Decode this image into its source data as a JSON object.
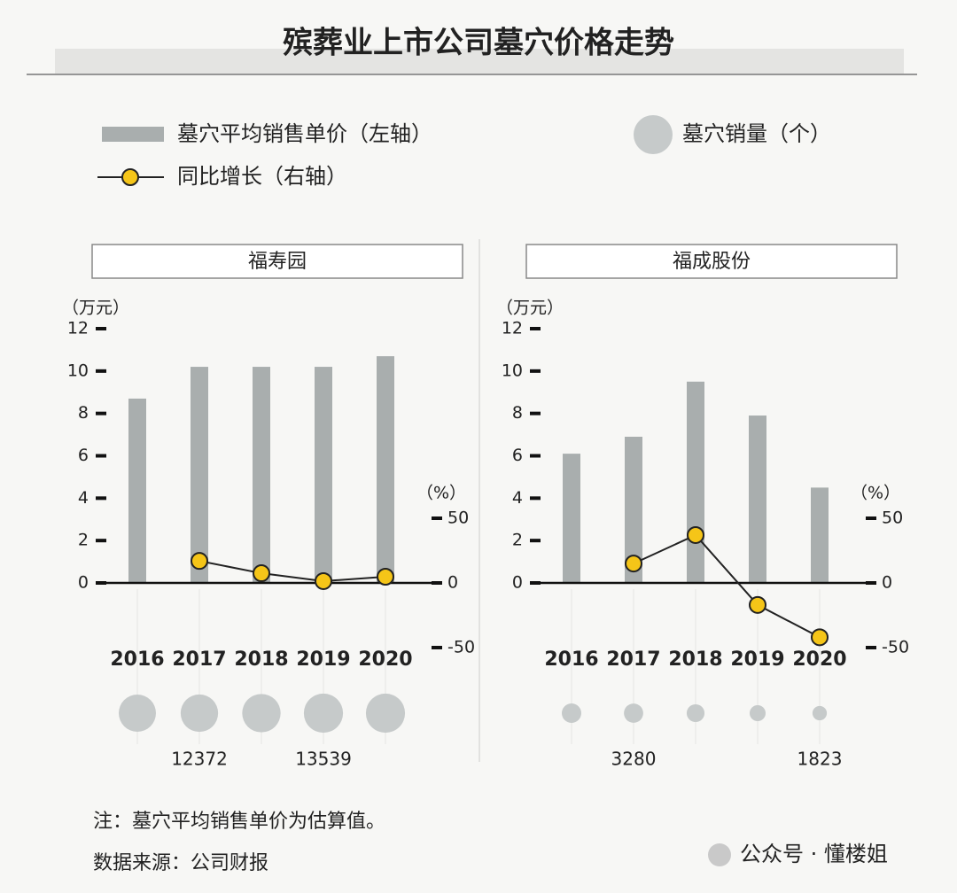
{
  "header": {
    "title": "殡葬业上市公司墓穴价格走势"
  },
  "chart_data": [
    {
      "type": "bar",
      "title": "福寿园",
      "y_label": "（万元）",
      "y2_label": "（%）",
      "categories": [
        "2016",
        "2017",
        "2018",
        "2019",
        "2020"
      ],
      "ylim": [
        0,
        12
      ],
      "yticks": [
        0,
        2,
        4,
        6,
        8,
        10,
        12
      ],
      "y2lim": [
        -50,
        50
      ],
      "y2ticks": [
        -50,
        0,
        50
      ],
      "series": [
        {
          "name": "墓穴平均销售单价（左轴）",
          "type": "bar",
          "color": "#a9aeae",
          "values": [
            8.7,
            10.2,
            10.2,
            10.2,
            10.7
          ]
        },
        {
          "name": "同比增长（右轴）",
          "type": "line",
          "axis": "y2",
          "color": "#f5c518",
          "values": [
            null,
            17,
            7.5,
            1.4,
            4.8
          ]
        },
        {
          "name": "墓穴销量（个）",
          "type": "bubble",
          "color": "#c6caca",
          "values": [
            12200,
            12372,
            13000,
            13539,
            13500
          ],
          "value_labels": [
            null,
            "12372",
            null,
            "13539",
            null
          ]
        }
      ]
    },
    {
      "type": "bar",
      "title": "福成股份",
      "y_label": "（万元）",
      "y2_label": "（%）",
      "categories": [
        "2016",
        "2017",
        "2018",
        "2019",
        "2020"
      ],
      "ylim": [
        0,
        12
      ],
      "yticks": [
        0,
        2,
        4,
        6,
        8,
        10,
        12
      ],
      "y2lim": [
        -50,
        50
      ],
      "y2ticks": [
        -50,
        0,
        50
      ],
      "series": [
        {
          "type": "bar",
          "color": "#a9aeae",
          "values": [
            6.1,
            6.9,
            9.5,
            7.9,
            4.5
          ]
        },
        {
          "type": "line",
          "axis": "y2",
          "color": "#f5c518",
          "values": [
            null,
            15,
            37,
            -17,
            -42
          ]
        },
        {
          "type": "bubble",
          "color": "#c6caca",
          "values": [
            3350,
            3280,
            2800,
            2250,
            1823
          ],
          "value_labels": [
            null,
            "3280",
            null,
            null,
            "1823"
          ]
        }
      ]
    }
  ],
  "notes": [
    "注：墓穴平均销售单价为估算值。",
    "数据来源：公司财报"
  ],
  "watermark": "公众号 · 懂楼姐"
}
